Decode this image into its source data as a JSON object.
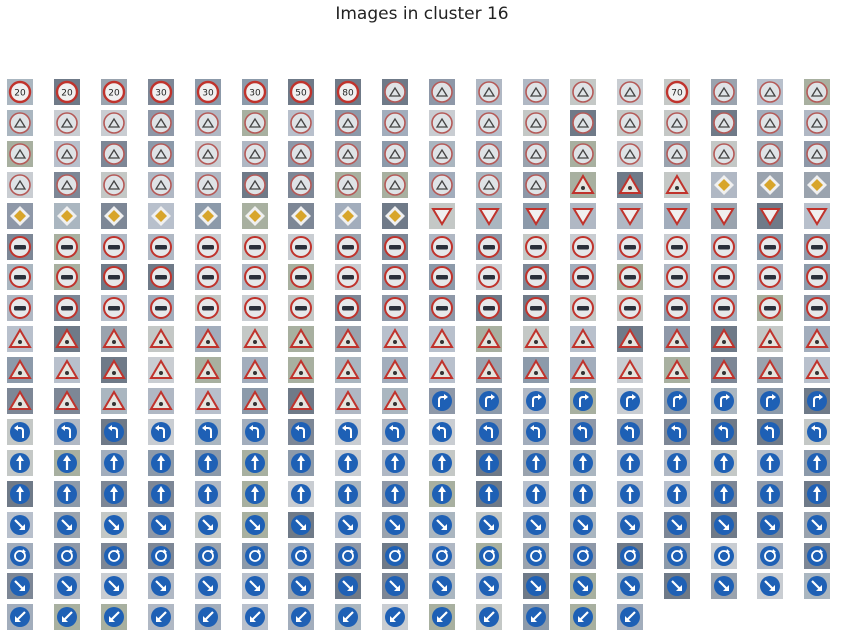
{
  "figure": {
    "title": "Images in cluster 16"
  },
  "grid": {
    "columns": 18,
    "rows": 18,
    "image_count": 320
  },
  "palette": {
    "red": "#c0332c",
    "blue": "#1e60b5",
    "dark": "#2a2f3a",
    "white": "#f0f0f0",
    "yellow": "#d8a52a",
    "sky": "#a6b4c6"
  },
  "rows": [
    {
      "sign": "speed-limit-icon",
      "tiles": [
        "20",
        "20",
        "20",
        "30",
        "30",
        "30",
        "50",
        "80",
        "rest",
        "rest",
        "rest",
        "rest",
        "rest",
        "rest",
        "70",
        "rest",
        "rest",
        "rest"
      ]
    },
    {
      "sign": "no-passing-icon",
      "count": 18
    },
    {
      "sign": "no-passing-icon",
      "count": 18
    },
    {
      "sign": "mixed-warning-icon",
      "tiles": [
        "np",
        "np",
        "np",
        "np",
        "np",
        "np",
        "np",
        "np",
        "np",
        "np",
        "np",
        "np",
        "tri",
        "tri",
        "tri",
        "diamond",
        "diamond",
        "diamond"
      ]
    },
    {
      "sign": "priority-road-icon",
      "tiles": [
        "diamond",
        "diamond",
        "diamond",
        "diamond",
        "diamond",
        "diamond",
        "diamond",
        "diamond",
        "diamond",
        "yield",
        "yield",
        "yield",
        "yield",
        "yield",
        "yield",
        "yield",
        "yield",
        "yield"
      ]
    },
    {
      "sign": "no-passing-trucks-icon",
      "count": 18
    },
    {
      "sign": "no-passing-trucks-icon",
      "count": 18
    },
    {
      "sign": "no-passing-trucks-icon",
      "count": 18
    },
    {
      "sign": "warning-triangle-icon",
      "count": 18
    },
    {
      "sign": "warning-triangle-icon",
      "count": 18
    },
    {
      "sign": "mixed-warning-icon",
      "tiles": [
        "tri",
        "tri",
        "tri",
        "tri",
        "tri",
        "tri",
        "tri",
        "tri",
        "tri",
        "turn",
        "turn",
        "turn",
        "turn",
        "turn",
        "turn",
        "turn",
        "turn",
        "turn"
      ]
    },
    {
      "sign": "turn-left-icon",
      "count": 18
    },
    {
      "sign": "ahead-only-icon",
      "count": 18
    },
    {
      "sign": "ahead-only-icon",
      "count": 18
    },
    {
      "sign": "keep-right-icon",
      "count": 18
    },
    {
      "sign": "roundabout-icon",
      "count": 18
    },
    {
      "sign": "keep-right-icon",
      "count": 18
    },
    {
      "sign": "keep-left-icon",
      "count": 14
    }
  ]
}
